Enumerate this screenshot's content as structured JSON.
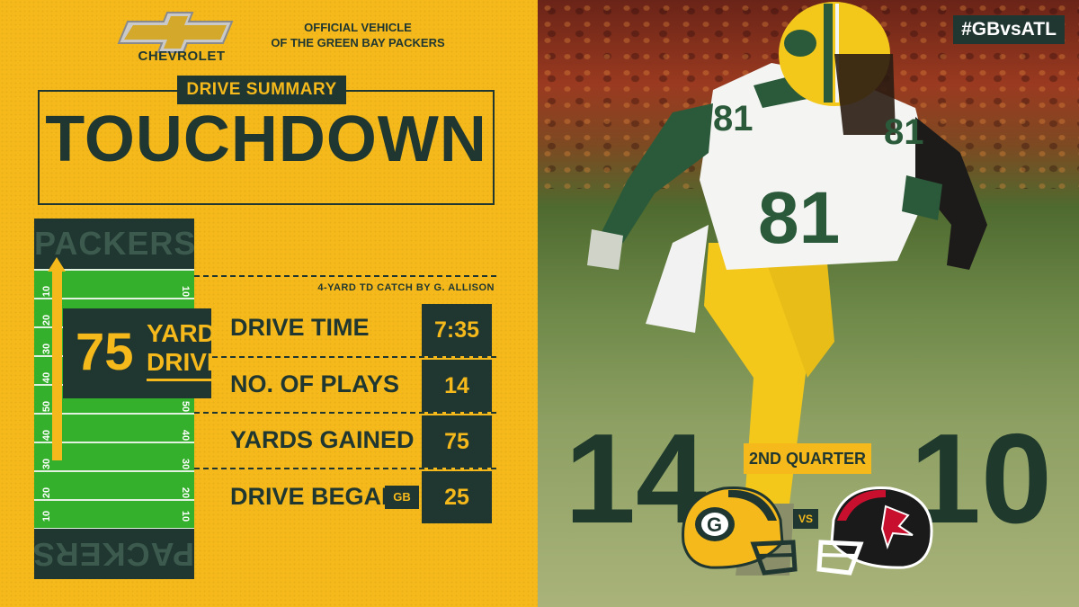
{
  "brand": {
    "name": "CHEVROLET",
    "tagline_line1": "OFFICIAL VEHICLE",
    "tagline_line2": "OF THE GREEN BAY PACKERS",
    "logo_color": "#d4a82a"
  },
  "header": {
    "section_label": "DRIVE SUMMARY",
    "result": "TOUCHDOWN"
  },
  "field": {
    "endzone_text": "PACKERS",
    "yard_numbers": [
      "10",
      "20",
      "30",
      "40",
      "50",
      "40",
      "30",
      "20",
      "10"
    ],
    "drive_length": "75",
    "drive_unit_line1": "YARD",
    "drive_unit_line2": "DRIVE"
  },
  "play_note": "4-YARD TD CATCH BY G. ALLISON",
  "stats": [
    {
      "label": "DRIVE TIME",
      "value": "7:35"
    },
    {
      "label": "NO. OF PLAYS",
      "value": "14"
    },
    {
      "label": "YARDS GAINED",
      "value": "75"
    },
    {
      "label": "DRIVE BEGAN",
      "value": "25",
      "tag": "GB"
    }
  ],
  "hashtag": "#GBvsATL",
  "scoreboard": {
    "home_score": "14",
    "away_score": "10",
    "period": "2ND QUARTER",
    "vs_text": "VS",
    "home_team_icon": "packers-helmet-icon",
    "away_team_icon": "falcons-helmet-icon"
  },
  "photo": {
    "jersey_number": "81",
    "helmet_logo": "G"
  },
  "colors": {
    "gold": "#f5b91b",
    "dark_green": "#203731",
    "field_green": "#35b02c",
    "falcons_black": "#1a1a1a",
    "falcons_red": "#c8102e"
  }
}
